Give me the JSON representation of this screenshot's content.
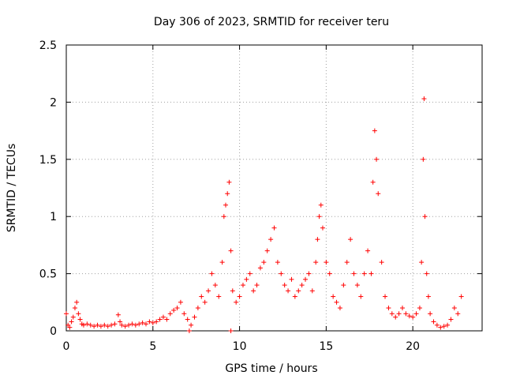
{
  "chart_data": {
    "type": "scatter",
    "title": "Day 306 of 2023, SRMTID for receiver teru",
    "xlabel": "GPS time / hours",
    "ylabel": "SRMTID / TECUs",
    "xlim": [
      0,
      24
    ],
    "ylim": [
      0,
      2.5
    ],
    "xticks": [
      "0",
      "5",
      "10",
      "15",
      "20"
    ],
    "xtick_values": [
      0,
      5,
      10,
      15,
      20
    ],
    "yticks": [
      "0",
      "0.5",
      "1",
      "1.5",
      "2",
      "2.5"
    ],
    "ytick_values": [
      0,
      0.5,
      1,
      1.5,
      2,
      2.5
    ],
    "grid": true,
    "marker": "+",
    "color": "#ff0000",
    "series": [
      {
        "name": "SRMTID",
        "x": [
          0.0,
          0.1,
          0.2,
          0.3,
          0.4,
          0.5,
          0.6,
          0.7,
          0.8,
          0.9,
          1.0,
          1.2,
          1.4,
          1.6,
          1.8,
          2.0,
          2.2,
          2.4,
          2.6,
          2.8,
          3.0,
          3.1,
          3.2,
          3.4,
          3.6,
          3.8,
          4.0,
          4.2,
          4.4,
          4.6,
          4.8,
          5.0,
          5.2,
          5.4,
          5.6,
          5.8,
          6.0,
          6.2,
          6.4,
          6.6,
          6.8,
          7.0,
          7.2,
          7.4,
          7.6,
          7.8,
          8.0,
          8.2,
          8.4,
          8.6,
          8.8,
          9.0,
          9.1,
          9.2,
          9.3,
          9.4,
          9.5,
          9.6,
          9.8,
          10.0,
          10.2,
          10.4,
          10.6,
          10.8,
          11.0,
          11.2,
          11.4,
          11.6,
          11.8,
          12.0,
          12.2,
          12.4,
          12.6,
          12.8,
          13.0,
          13.2,
          13.4,
          13.6,
          13.8,
          14.0,
          14.2,
          14.4,
          14.5,
          14.6,
          14.7,
          14.8,
          15.0,
          15.2,
          15.4,
          15.6,
          15.8,
          16.0,
          16.2,
          16.4,
          16.6,
          16.8,
          17.0,
          17.2,
          17.4,
          17.6,
          17.7,
          17.8,
          17.9,
          18.0,
          18.2,
          18.4,
          18.6,
          18.8,
          19.0,
          19.2,
          19.4,
          19.6,
          19.8,
          20.0,
          20.2,
          20.4,
          20.5,
          20.6,
          20.65,
          20.7,
          20.8,
          20.9,
          21.0,
          21.2,
          21.4,
          21.6,
          21.8,
          22.0,
          22.2,
          22.4,
          22.6,
          22.8,
          7.1,
          9.5
        ],
        "y": [
          0.15,
          0.05,
          0.03,
          0.08,
          0.12,
          0.2,
          0.25,
          0.15,
          0.1,
          0.06,
          0.05,
          0.06,
          0.05,
          0.04,
          0.05,
          0.04,
          0.05,
          0.04,
          0.05,
          0.06,
          0.14,
          0.08,
          0.05,
          0.04,
          0.05,
          0.06,
          0.05,
          0.06,
          0.07,
          0.06,
          0.08,
          0.07,
          0.08,
          0.1,
          0.12,
          0.1,
          0.15,
          0.18,
          0.2,
          0.25,
          0.15,
          0.1,
          0.05,
          0.12,
          0.2,
          0.3,
          0.25,
          0.35,
          0.5,
          0.4,
          0.3,
          0.6,
          1.0,
          1.1,
          1.2,
          1.3,
          0.7,
          0.35,
          0.25,
          0.3,
          0.4,
          0.45,
          0.5,
          0.35,
          0.4,
          0.55,
          0.6,
          0.7,
          0.8,
          0.9,
          0.6,
          0.5,
          0.4,
          0.35,
          0.45,
          0.3,
          0.35,
          0.4,
          0.45,
          0.5,
          0.35,
          0.6,
          0.8,
          1.0,
          1.1,
          0.9,
          0.6,
          0.5,
          0.3,
          0.25,
          0.2,
          0.4,
          0.6,
          0.8,
          0.5,
          0.4,
          0.3,
          0.5,
          0.7,
          0.5,
          1.3,
          1.75,
          1.5,
          1.2,
          0.6,
          0.3,
          0.2,
          0.15,
          0.12,
          0.15,
          0.2,
          0.15,
          0.13,
          0.12,
          0.15,
          0.2,
          0.6,
          1.5,
          2.03,
          1.0,
          0.5,
          0.3,
          0.15,
          0.08,
          0.05,
          0.03,
          0.04,
          0.05,
          0.1,
          0.2,
          0.15,
          0.3,
          0.0,
          0.0
        ]
      }
    ]
  }
}
